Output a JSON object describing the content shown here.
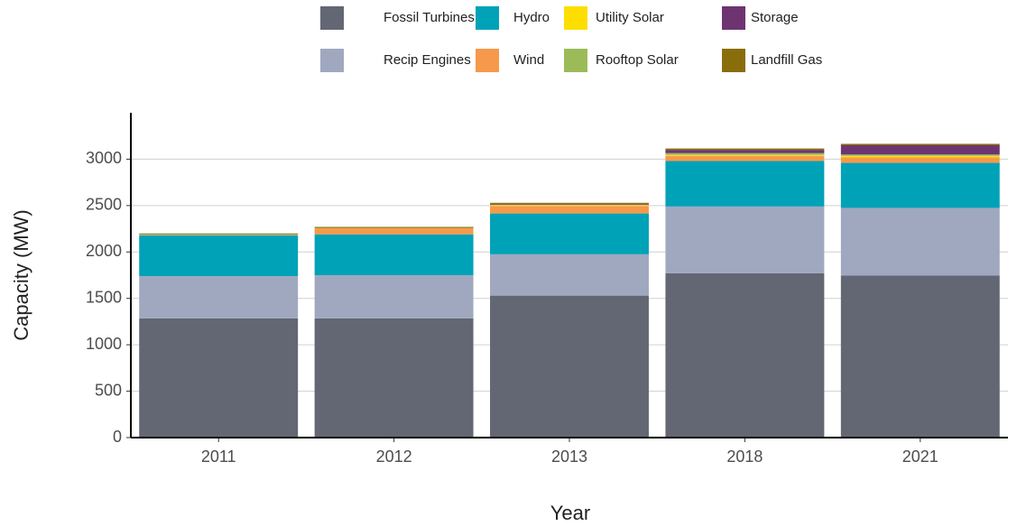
{
  "chart_data": {
    "type": "stacked_bar",
    "x_label": "Year",
    "y_label": "Capacity (MW)",
    "categories": [
      "2011",
      "2012",
      "2013",
      "2018",
      "2021"
    ],
    "series": [
      {
        "name": "Fossil Turbines",
        "color": "#636773",
        "values": [
          1285,
          1285,
          1530,
          1770,
          1745
        ]
      },
      {
        "name": "Recip Engines",
        "color": "#a0a8c0",
        "values": [
          455,
          465,
          445,
          720,
          730
        ]
      },
      {
        "name": "Hydro",
        "color": "#00a2b8",
        "values": [
          440,
          440,
          440,
          490,
          485
        ]
      },
      {
        "name": "Wind",
        "color": "#f7994a",
        "values": [
          5,
          65,
          80,
          55,
          60
        ]
      },
      {
        "name": "Utility Solar",
        "color": "#fede00",
        "values": [
          0,
          0,
          10,
          10,
          15
        ]
      },
      {
        "name": "Rooftop Solar",
        "color": "#9bbb59",
        "values": [
          5,
          5,
          5,
          20,
          15
        ]
      },
      {
        "name": "Storage",
        "color": "#6e3472",
        "values": [
          0,
          0,
          10,
          35,
          100
        ]
      },
      {
        "name": "Landfill Gas",
        "color": "#8a6d0b",
        "values": [
          10,
          10,
          10,
          15,
          15
        ]
      }
    ],
    "ylim": [
      0,
      3500
    ],
    "yticks": [
      0,
      500,
      1000,
      1500,
      2000,
      2500,
      3000
    ],
    "grid": true
  }
}
